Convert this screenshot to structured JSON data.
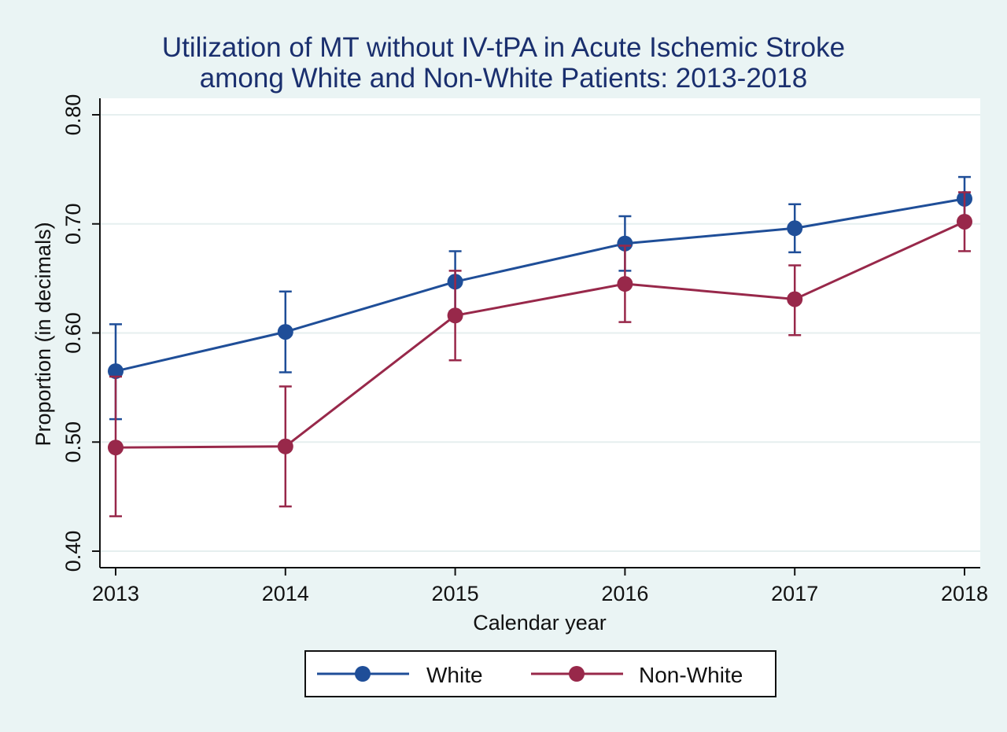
{
  "chart_data": {
    "type": "line",
    "title": "Utilization of MT without IV-tPA in Acute Ischemic Stroke",
    "subtitle": "among White and Non-White Patients: 2013-2018",
    "xlabel": "Calendar year",
    "ylabel": "Proportion (in decimals)",
    "x": [
      2013,
      2014,
      2015,
      2016,
      2017,
      2018
    ],
    "x_tick_labels": [
      "2013",
      "2014",
      "2015",
      "2016",
      "2017",
      "2018"
    ],
    "ylim": [
      0.4,
      0.8
    ],
    "y_ticks": [
      0.4,
      0.5,
      0.6,
      0.7,
      0.8
    ],
    "y_tick_labels": [
      "0.40",
      "0.50",
      "0.60",
      "0.70",
      "0.80"
    ],
    "grid": true,
    "legend_position": "bottom",
    "series": [
      {
        "name": "White",
        "color": "#1f4e98",
        "values": [
          0.565,
          0.601,
          0.647,
          0.682,
          0.696,
          0.723
        ],
        "lower": [
          0.521,
          0.564,
          0.62,
          0.657,
          0.674,
          0.703
        ],
        "upper": [
          0.608,
          0.638,
          0.675,
          0.707,
          0.718,
          0.743
        ]
      },
      {
        "name": "Non-White",
        "color": "#98284a",
        "values": [
          0.495,
          0.496,
          0.616,
          0.645,
          0.631,
          0.702
        ],
        "lower": [
          0.432,
          0.441,
          0.575,
          0.61,
          0.598,
          0.675
        ],
        "upper": [
          0.56,
          0.551,
          0.657,
          0.68,
          0.662,
          0.729
        ]
      }
    ]
  }
}
